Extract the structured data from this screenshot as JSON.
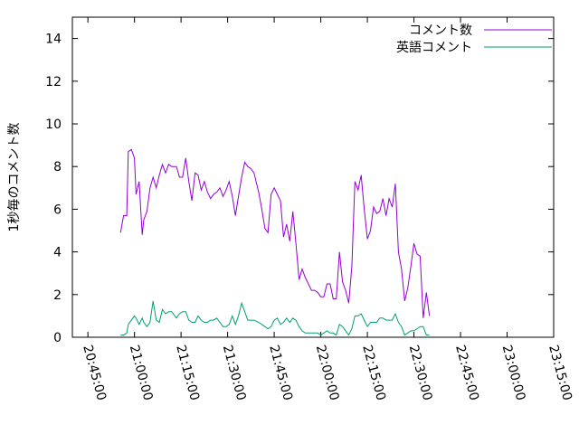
{
  "chart_data": {
    "type": "line",
    "title": "",
    "xlabel": "",
    "ylabel": "1秒毎のコメント数",
    "xlim": [
      "20:40:00",
      "23:15:00"
    ],
    "ylim": [
      0,
      15
    ],
    "yticks": [
      0,
      2,
      4,
      6,
      8,
      10,
      12,
      14
    ],
    "xticks": [
      "20:45:00",
      "21:00:00",
      "21:15:00",
      "21:30:00",
      "21:45:00",
      "22:00:00",
      "22:15:00",
      "22:30:00",
      "22:45:00",
      "23:00:00",
      "23:15:00"
    ],
    "legend_position": "top-right",
    "grid": false,
    "series": [
      {
        "name": "コメント数",
        "color": "#9400d3",
        "points": [
          [
            "20:55:30",
            4.9
          ],
          [
            "20:56:30",
            5.7
          ],
          [
            "20:57:30",
            5.7
          ],
          [
            "20:58:00",
            8.7
          ],
          [
            "20:59:00",
            8.8
          ],
          [
            "21:00:00",
            8.4
          ],
          [
            "21:00:30",
            6.7
          ],
          [
            "21:01:30",
            7.3
          ],
          [
            "21:02:30",
            4.8
          ],
          [
            "21:03:00",
            5.5
          ],
          [
            "21:04:00",
            5.9
          ],
          [
            "21:05:00",
            7.0
          ],
          [
            "21:06:00",
            7.5
          ],
          [
            "21:07:00",
            7.0
          ],
          [
            "21:08:00",
            7.6
          ],
          [
            "21:09:00",
            8.1
          ],
          [
            "21:10:00",
            7.7
          ],
          [
            "21:11:00",
            8.1
          ],
          [
            "21:12:00",
            8.0
          ],
          [
            "21:13:30",
            8.0
          ],
          [
            "21:14:30",
            7.5
          ],
          [
            "21:15:30",
            7.5
          ],
          [
            "21:16:30",
            8.4
          ],
          [
            "21:17:30",
            7.3
          ],
          [
            "21:18:30",
            6.4
          ],
          [
            "21:19:30",
            7.7
          ],
          [
            "21:20:30",
            7.6
          ],
          [
            "21:21:30",
            6.9
          ],
          [
            "21:22:30",
            7.3
          ],
          [
            "21:23:30",
            6.8
          ],
          [
            "21:24:30",
            6.5
          ],
          [
            "21:25:30",
            6.7
          ],
          [
            "21:26:30",
            6.8
          ],
          [
            "21:27:30",
            7.0
          ],
          [
            "21:28:30",
            6.6
          ],
          [
            "21:29:30",
            6.9
          ],
          [
            "21:30:30",
            7.3
          ],
          [
            "21:31:30",
            6.6
          ],
          [
            "21:32:30",
            5.7
          ],
          [
            "21:33:30",
            6.6
          ],
          [
            "21:34:30",
            7.5
          ],
          [
            "21:35:30",
            8.2
          ],
          [
            "21:36:30",
            8.0
          ],
          [
            "21:37:30",
            7.9
          ],
          [
            "21:38:30",
            7.7
          ],
          [
            "21:40:00",
            6.8
          ],
          [
            "21:41:00",
            6.0
          ],
          [
            "21:42:00",
            5.1
          ],
          [
            "21:43:00",
            4.9
          ],
          [
            "21:44:00",
            6.7
          ],
          [
            "21:45:00",
            7.0
          ],
          [
            "21:46:00",
            6.7
          ],
          [
            "21:47:00",
            6.4
          ],
          [
            "21:48:00",
            4.7
          ],
          [
            "21:49:00",
            5.3
          ],
          [
            "21:50:00",
            4.5
          ],
          [
            "21:51:00",
            5.9
          ],
          [
            "21:52:00",
            4.4
          ],
          [
            "21:53:00",
            2.7
          ],
          [
            "21:54:00",
            3.2
          ],
          [
            "21:55:00",
            2.8
          ],
          [
            "21:56:00",
            2.5
          ],
          [
            "21:57:00",
            2.2
          ],
          [
            "21:58:00",
            2.2
          ],
          [
            "21:59:00",
            2.1
          ],
          [
            "22:00:00",
            1.9
          ],
          [
            "22:01:00",
            1.9
          ],
          [
            "22:02:00",
            2.5
          ],
          [
            "22:03:00",
            2.5
          ],
          [
            "22:04:00",
            1.8
          ],
          [
            "22:05:00",
            1.8
          ],
          [
            "22:06:00",
            4.0
          ],
          [
            "22:07:00",
            2.6
          ],
          [
            "22:08:00",
            2.2
          ],
          [
            "22:09:00",
            1.6
          ],
          [
            "22:10:00",
            3.3
          ],
          [
            "22:11:00",
            7.3
          ],
          [
            "22:12:00",
            6.9
          ],
          [
            "22:13:00",
            7.6
          ],
          [
            "22:14:00",
            6.0
          ],
          [
            "22:15:00",
            4.6
          ],
          [
            "22:16:00",
            5.0
          ],
          [
            "22:17:00",
            6.1
          ],
          [
            "22:18:00",
            5.8
          ],
          [
            "22:19:00",
            5.9
          ],
          [
            "22:20:00",
            6.5
          ],
          [
            "22:21:00",
            5.7
          ],
          [
            "22:22:00",
            6.5
          ],
          [
            "22:23:00",
            6.1
          ],
          [
            "22:24:00",
            7.2
          ],
          [
            "22:25:00",
            4.0
          ],
          [
            "22:26:00",
            3.2
          ],
          [
            "22:27:00",
            1.7
          ],
          [
            "22:28:00",
            2.3
          ],
          [
            "22:29:00",
            3.3
          ],
          [
            "22:30:00",
            4.4
          ],
          [
            "22:31:00",
            3.9
          ],
          [
            "22:32:00",
            3.8
          ],
          [
            "22:33:00",
            0.9
          ],
          [
            "22:34:00",
            2.1
          ],
          [
            "22:35:00",
            1.0
          ]
        ]
      },
      {
        "name": "英語コメント",
        "color": "#009e73",
        "points": [
          [
            "20:55:30",
            0.1
          ],
          [
            "20:56:30",
            0.1
          ],
          [
            "20:57:30",
            0.2
          ],
          [
            "20:58:00",
            0.6
          ],
          [
            "20:59:00",
            0.8
          ],
          [
            "21:00:00",
            1.0
          ],
          [
            "21:00:30",
            0.9
          ],
          [
            "21:01:30",
            0.6
          ],
          [
            "21:02:30",
            0.9
          ],
          [
            "21:03:00",
            0.7
          ],
          [
            "21:04:00",
            0.5
          ],
          [
            "21:05:00",
            0.7
          ],
          [
            "21:06:00",
            1.7
          ],
          [
            "21:07:00",
            0.8
          ],
          [
            "21:08:00",
            0.7
          ],
          [
            "21:09:00",
            1.3
          ],
          [
            "21:10:00",
            1.1
          ],
          [
            "21:11:00",
            1.2
          ],
          [
            "21:12:00",
            1.2
          ],
          [
            "21:13:30",
            0.9
          ],
          [
            "21:14:30",
            1.1
          ],
          [
            "21:15:30",
            1.2
          ],
          [
            "21:16:30",
            1.2
          ],
          [
            "21:17:30",
            0.8
          ],
          [
            "21:18:30",
            0.7
          ],
          [
            "21:19:30",
            0.7
          ],
          [
            "21:20:30",
            1.0
          ],
          [
            "21:21:30",
            0.8
          ],
          [
            "21:22:30",
            0.7
          ],
          [
            "21:23:30",
            0.7
          ],
          [
            "21:24:30",
            0.8
          ],
          [
            "21:25:30",
            0.8
          ],
          [
            "21:26:30",
            0.9
          ],
          [
            "21:27:30",
            0.7
          ],
          [
            "21:28:30",
            0.5
          ],
          [
            "21:29:30",
            0.5
          ],
          [
            "21:30:30",
            0.6
          ],
          [
            "21:31:30",
            1.0
          ],
          [
            "21:32:30",
            0.6
          ],
          [
            "21:33:30",
            1.0
          ],
          [
            "21:34:30",
            1.6
          ],
          [
            "21:35:30",
            1.2
          ],
          [
            "21:36:30",
            0.8
          ],
          [
            "21:37:30",
            0.8
          ],
          [
            "21:38:30",
            0.8
          ],
          [
            "21:40:00",
            0.7
          ],
          [
            "21:41:00",
            0.6
          ],
          [
            "21:42:00",
            0.5
          ],
          [
            "21:43:00",
            0.4
          ],
          [
            "21:44:00",
            0.5
          ],
          [
            "21:45:00",
            0.8
          ],
          [
            "21:46:00",
            0.9
          ],
          [
            "21:47:00",
            0.6
          ],
          [
            "21:48:00",
            0.7
          ],
          [
            "21:49:00",
            0.9
          ],
          [
            "21:50:00",
            0.7
          ],
          [
            "21:51:00",
            0.9
          ],
          [
            "21:52:00",
            0.8
          ],
          [
            "21:53:00",
            0.5
          ],
          [
            "21:54:00",
            0.3
          ],
          [
            "21:55:00",
            0.2
          ],
          [
            "21:56:00",
            0.2
          ],
          [
            "21:57:00",
            0.2
          ],
          [
            "21:58:00",
            0.2
          ],
          [
            "21:59:00",
            0.2
          ],
          [
            "22:00:00",
            0.1
          ],
          [
            "22:01:00",
            0.2
          ],
          [
            "22:02:00",
            0.3
          ],
          [
            "22:03:00",
            0.2
          ],
          [
            "22:04:00",
            0.2
          ],
          [
            "22:05:00",
            0.1
          ],
          [
            "22:06:00",
            0.6
          ],
          [
            "22:07:00",
            0.5
          ],
          [
            "22:08:00",
            0.3
          ],
          [
            "22:09:00",
            0.1
          ],
          [
            "22:10:00",
            0.4
          ],
          [
            "22:11:00",
            1.0
          ],
          [
            "22:12:00",
            1.0
          ],
          [
            "22:13:00",
            1.1
          ],
          [
            "22:14:00",
            0.8
          ],
          [
            "22:15:00",
            0.5
          ],
          [
            "22:16:00",
            0.7
          ],
          [
            "22:17:00",
            0.7
          ],
          [
            "22:18:00",
            0.7
          ],
          [
            "22:19:00",
            0.9
          ],
          [
            "22:20:00",
            0.9
          ],
          [
            "22:21:00",
            0.8
          ],
          [
            "22:22:00",
            0.8
          ],
          [
            "22:23:00",
            0.8
          ],
          [
            "22:24:00",
            1.1
          ],
          [
            "22:25:00",
            0.7
          ],
          [
            "22:26:00",
            0.5
          ],
          [
            "22:27:00",
            0.1
          ],
          [
            "22:28:00",
            0.2
          ],
          [
            "22:29:00",
            0.3
          ],
          [
            "22:30:00",
            0.3
          ],
          [
            "22:31:00",
            0.4
          ],
          [
            "22:32:00",
            0.5
          ],
          [
            "22:33:00",
            0.5
          ],
          [
            "22:34:00",
            0.1
          ],
          [
            "22:35:00",
            0.1
          ]
        ]
      }
    ]
  }
}
